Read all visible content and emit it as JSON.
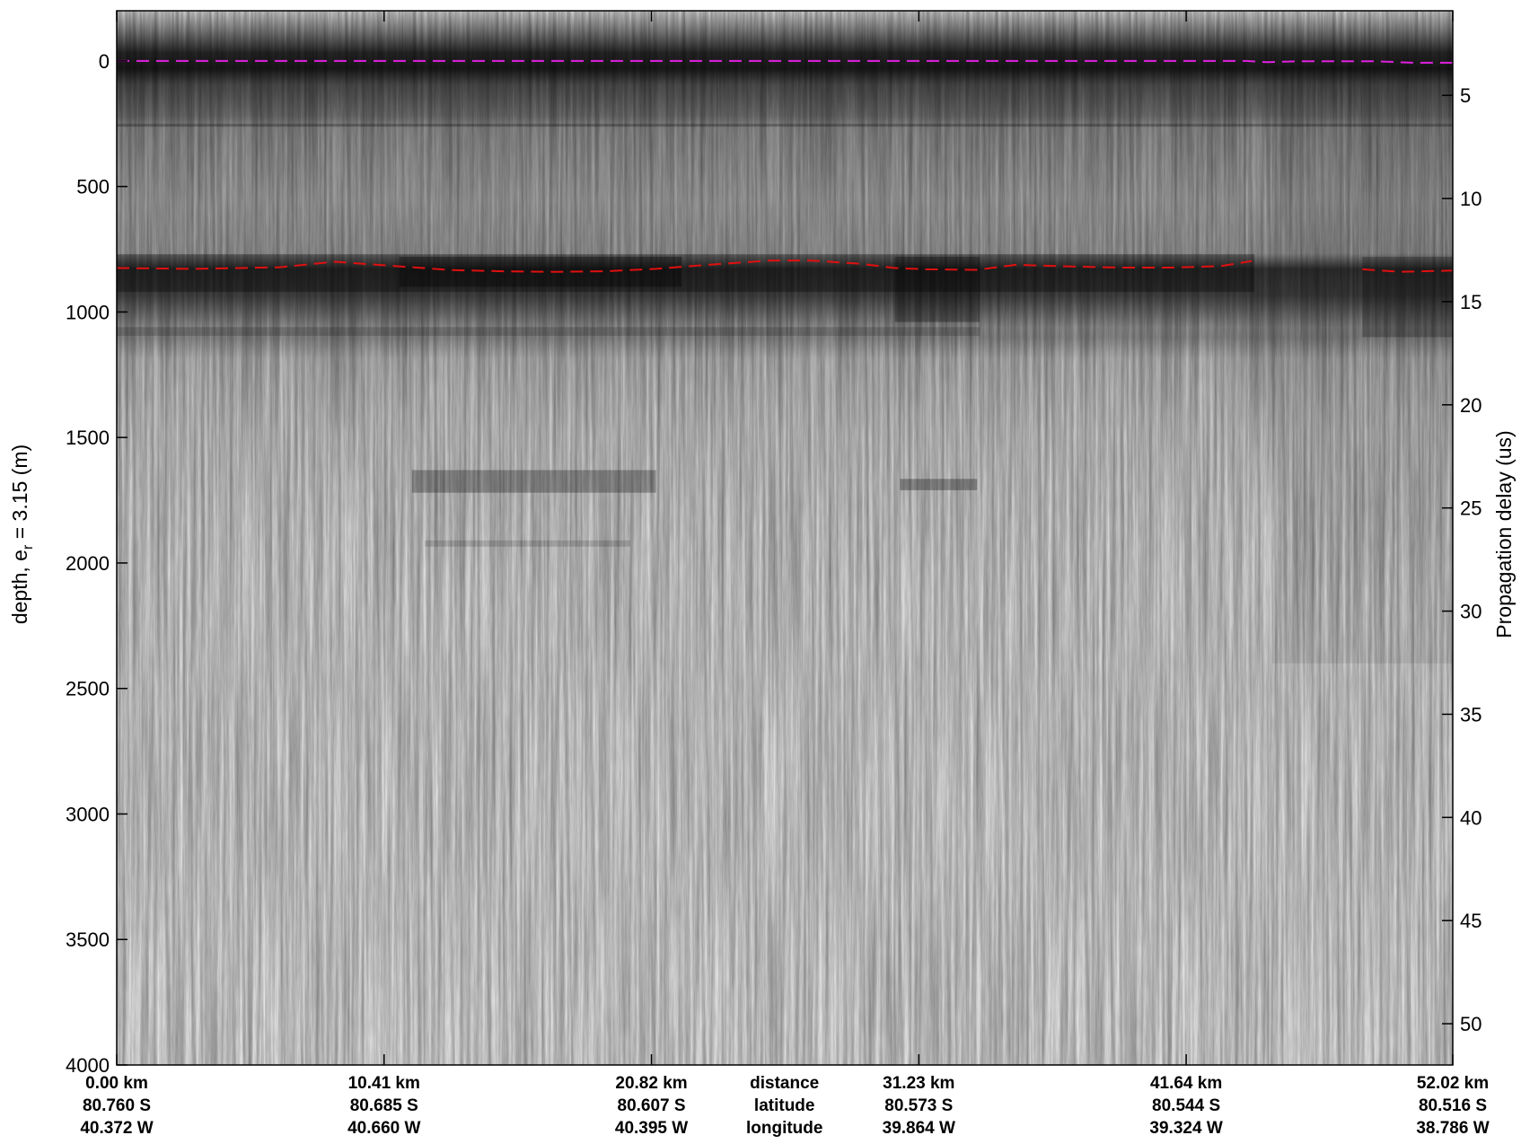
{
  "chart_data": {
    "type": "heatmap",
    "description": "radar echogram",
    "title": "",
    "ylabel_left": {
      "main": "depth, e",
      "sub": "r",
      "rest": " = 3.15 (m)"
    },
    "ylabel_right": "Propagation delay (us)",
    "left_axis": {
      "ylim": [
        4000,
        -200
      ],
      "ticks": [
        0,
        500,
        1000,
        1500,
        2000,
        2500,
        3000,
        3500,
        4000
      ],
      "inverted": true
    },
    "right_axis": {
      "ylim": [
        52.0,
        0.9
      ],
      "ticks": [
        5,
        10,
        15,
        20,
        25,
        30,
        35,
        40,
        45,
        50
      ],
      "inverted": true
    },
    "x_axis": {
      "range_km": [
        0,
        52.02
      ],
      "ticks": [
        {
          "distance": "0.00 km",
          "latitude": "80.760 S",
          "longitude": "40.372 W",
          "km": 0
        },
        {
          "distance": "10.41 km",
          "latitude": "80.685 S",
          "longitude": "40.660 W",
          "km": 10.41
        },
        {
          "distance": "20.82 km",
          "latitude": "80.607 S",
          "longitude": "40.395 W",
          "km": 20.82
        },
        {
          "distance": "31.23 km",
          "latitude": "80.573 S",
          "longitude": "39.864 W",
          "km": 31.23
        },
        {
          "distance": "41.64 km",
          "latitude": "80.544 S",
          "longitude": "39.324 W",
          "km": 41.64
        },
        {
          "distance": "52.02 km",
          "latitude": "80.516 S",
          "longitude": "38.786 W",
          "km": 52.02
        }
      ],
      "row_labels": {
        "distance": "distance",
        "latitude": "latitude",
        "longitude": "longitude"
      },
      "row_labels_km": 26.0
    },
    "grid": false,
    "surface_pick": {
      "color": "#e020e0",
      "style": "dashed",
      "x_km": [
        0,
        10,
        20,
        30,
        44,
        44.8,
        46,
        49,
        50.5,
        52.02
      ],
      "depth_m": [
        0,
        0,
        0,
        0,
        0,
        5,
        1,
        1,
        7,
        7
      ]
    },
    "bed_pick": {
      "color": "#e01010",
      "style": "dashed",
      "segments": [
        {
          "x_km": [
            0,
            3,
            6.3,
            7.5,
            8.5,
            11,
            13,
            15,
            17,
            19,
            21,
            23,
            25.5,
            27,
            29,
            30.3,
            31.5,
            33.5,
            35,
            37,
            39,
            41,
            43,
            44.2
          ],
          "depth_m": [
            825,
            828,
            822,
            810,
            800,
            818,
            833,
            838,
            840,
            838,
            828,
            812,
            795,
            795,
            808,
            825,
            830,
            832,
            812,
            818,
            823,
            823,
            817,
            797
          ]
        },
        {
          "x_km": [
            48.5,
            50,
            52.02
          ],
          "depth_m": [
            830,
            840,
            835
          ]
        }
      ]
    },
    "colormap": "grayscale"
  }
}
